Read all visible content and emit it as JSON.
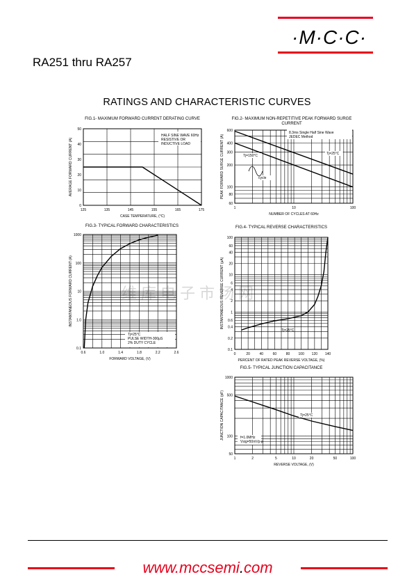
{
  "header": {
    "logo_text": "·M·C·C·",
    "part_range": "RA251 thru RA257",
    "section_title": "RATINGS AND CHARACTERISTIC CURVES"
  },
  "watermark_text": "维库电子市场网",
  "footer": {
    "url_prefix": "www.",
    "url_domain": "mccsemi",
    "url_dot": ".",
    "url_tld": "com"
  },
  "colors": {
    "accent": "#e8001c"
  },
  "chart_data": [
    {
      "id": "fig1",
      "type": "line",
      "title": "FIG.1- MAXIMUM FORWARD CURRENT DERATING CURVE",
      "xlabel": "CASE TEMPERATURE, (°C)",
      "ylabel": "AVERAGE FORWARD CURRENT (A)",
      "xlim": [
        125,
        175
      ],
      "ylim": [
        0,
        50
      ],
      "xticks": [
        "125",
        "135",
        "145",
        "155",
        "165",
        "175"
      ],
      "yticks": [
        "0",
        "10",
        "20",
        "30",
        "40",
        "50"
      ],
      "annotation": [
        "HALF SINE WAVE 60Hz",
        "RESISTIVE OR",
        "INDUCTIVE LOAD"
      ],
      "series": [
        {
          "x": [
            125,
            150,
            175
          ],
          "y": [
            25,
            25,
            0
          ]
        }
      ]
    },
    {
      "id": "fig2",
      "type": "line",
      "title": "FIG.2- MAXIMUM NON-REPETITIVE PEAK FORWARD SURGE CURRENT",
      "xlabel": "NUMBER OF CYCLES AT 60Hz",
      "ylabel": "PEAK FORWARD SURGE CURRENT (A)",
      "xscale": "log",
      "yscale": "log",
      "xlim": [
        1,
        100
      ],
      "ylim": [
        60,
        600
      ],
      "xticks": [
        "1",
        "10",
        "100"
      ],
      "yticks": [
        "60",
        "80",
        "100",
        "200",
        "300",
        "400",
        "600"
      ],
      "annotation": [
        "8.3ms Single Half Sine Wave",
        "JEDEC Method"
      ],
      "labels": [
        "Tj=25°C",
        "Tj=150°C",
        "cycle"
      ],
      "series": [
        {
          "name": "Tj=25°C",
          "x": [
            1,
            100
          ],
          "y": [
            580,
            150
          ]
        },
        {
          "name": "Tj=150°C",
          "x": [
            1,
            100
          ],
          "y": [
            400,
            100
          ]
        }
      ]
    },
    {
      "id": "fig3",
      "type": "line",
      "title": "FIG.3- TYPICAL FORWARD CHARACTERISTICS",
      "xlabel": "FORWARD VOLTAGE, (V)",
      "ylabel": "INSTANTANEOUS FORWARD CURRENT (A)",
      "yscale": "log",
      "xlim": [
        0.6,
        2.6
      ],
      "ylim": [
        0.1,
        1000
      ],
      "xticks": [
        "0.6",
        "1.0",
        "1.4",
        "1.8",
        "2.2",
        "2.6"
      ],
      "yticks": [
        "0.1",
        "1.0",
        "10",
        "100",
        "1000"
      ],
      "annotation": [
        "Tj=25°C",
        "PULSE WIDTH-300μS",
        "2% DUTY CYCLE"
      ],
      "series": [
        {
          "x": [
            0.62,
            0.65,
            0.7,
            0.8,
            0.9,
            1.0,
            1.2,
            1.4,
            1.6,
            1.8,
            2.0,
            2.2
          ],
          "y": [
            0.1,
            1.0,
            4,
            15,
            35,
            70,
            170,
            320,
            480,
            650,
            800,
            950
          ]
        }
      ]
    },
    {
      "id": "fig4",
      "type": "line",
      "title": "FIG.4- TYPICAL REVERSE CHARACTERISTICS",
      "xlabel": "PERCENT OF RATED PEAK REVERSE VOLTAGE, (%)",
      "ylabel": "INSTANTANEOUS REVERSE CURRENT (μA)",
      "yscale": "log",
      "xlim": [
        0,
        140
      ],
      "ylim": [
        0.1,
        100
      ],
      "xticks": [
        "0",
        "20",
        "40",
        "60",
        "80",
        "100",
        "120",
        "140"
      ],
      "yticks": [
        "0.1",
        "0.2",
        "0.4",
        "0.6",
        "1",
        "2",
        "4",
        "6",
        "10",
        "20",
        "40",
        "60",
        "100"
      ],
      "annotation": [
        "Tj=25°C"
      ],
      "series": [
        {
          "x": [
            10,
            20,
            40,
            60,
            80,
            100,
            110,
            120,
            125,
            130,
            134,
            137,
            140
          ],
          "y": [
            0.33,
            0.38,
            0.48,
            0.58,
            0.66,
            0.8,
            1.0,
            1.6,
            2.6,
            5,
            12,
            40,
            100
          ]
        }
      ]
    },
    {
      "id": "fig5",
      "type": "line",
      "title": "FIG.5- TYPICAL JUNCTION CAPACITANCE",
      "xlabel": "REVERSE VOLTAGE, (V)",
      "ylabel": "JUNCTION CAPACITANCE (pF)",
      "xscale": "log",
      "yscale": "log",
      "xlim": [
        1,
        100
      ],
      "ylim": [
        50,
        1000
      ],
      "xticks": [
        "1",
        "2",
        "5",
        "10",
        "20",
        "50",
        "100"
      ],
      "yticks": [
        "50",
        "100",
        "500",
        "1000"
      ],
      "annotation": [
        "f=1.0MHz",
        "Vsig=50mVp-p"
      ],
      "labels": [
        "Tj=25°C"
      ],
      "series": [
        {
          "x": [
            1,
            2,
            5,
            10,
            20,
            50,
            100
          ],
          "y": [
            480,
            380,
            280,
            220,
            180,
            145,
            125
          ]
        }
      ]
    }
  ]
}
